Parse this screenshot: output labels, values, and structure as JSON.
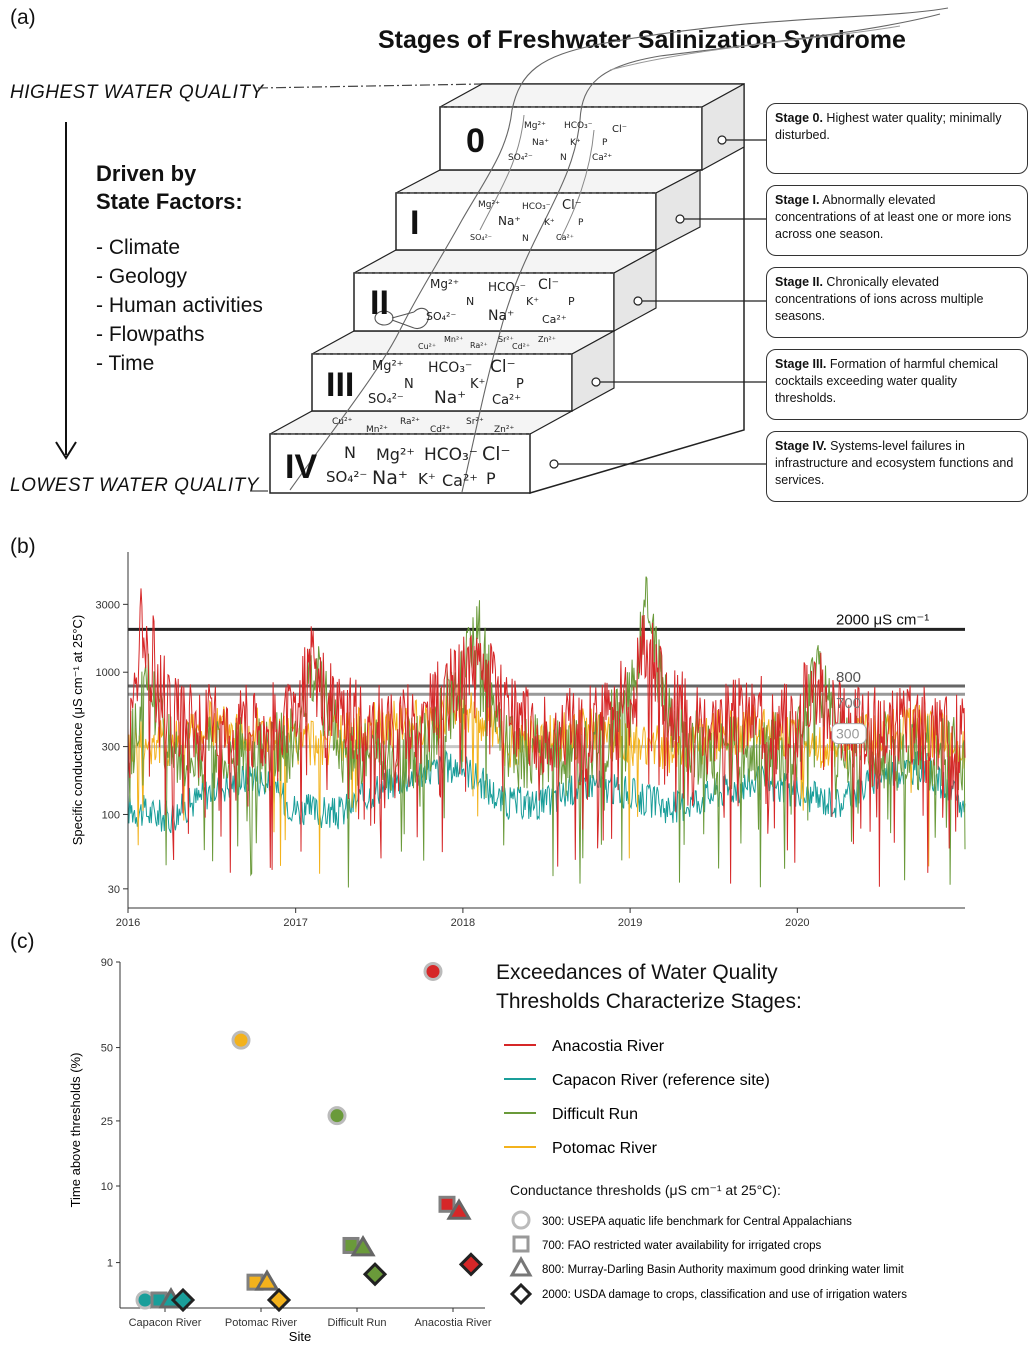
{
  "panel_a": {
    "letter": "(a)",
    "title": "Stages of Freshwater Salinization Syndrome",
    "highest": "HIGHEST WATER QUALITY",
    "lowest": "LOWEST WATER QUALITY",
    "driven_line1": "Driven by",
    "driven_line2": "State Factors:",
    "factors": [
      "- Climate",
      "- Geology",
      "- Human activities",
      "- Flowpaths",
      "- Time"
    ],
    "stages": [
      {
        "numeral": "0",
        "bold": "Stage 0.",
        "text": " Highest water quality; minimally disturbed."
      },
      {
        "numeral": "I",
        "bold": "Stage I.",
        "text": " Abnormally elevated concentrations of at least one or more ions across one season."
      },
      {
        "numeral": "II",
        "bold": "Stage II.",
        "text": " Chronically elevated concentrations of ions across multiple seasons."
      },
      {
        "numeral": "III",
        "bold": "Stage III.",
        "text": " Formation of harmful chemical cocktails exceeding water quality thresholds."
      },
      {
        "numeral": "IV",
        "bold": "Stage IV.",
        "text": " Systems-level failures in infrastructure and ecosystem functions and services."
      }
    ],
    "ions": {
      "mg": "Mg²⁺",
      "hco3": "HCO₃⁻",
      "cl": "Cl⁻",
      "na": "Na⁺",
      "k": "K⁺",
      "p": "P",
      "so4": "SO₄²⁻",
      "n": "N",
      "ca": "Ca²⁺",
      "cu": "Cu²⁺",
      "mn": "Mn²⁺",
      "ra": "Ra²⁺",
      "sr": "Sr²⁺",
      "cd": "Cd²⁺",
      "zn": "Zn²⁺"
    }
  },
  "panel_b": {
    "letter": "(b)",
    "ylabel": "Specific conductance (μS cm⁻¹ at 25°C)",
    "line_labels": [
      "2000 μS cm⁻¹",
      "800",
      "700",
      "300"
    ]
  },
  "panel_c": {
    "letter": "(c)",
    "ylabel": "Time above thresholds (%)",
    "xlabel": "Site",
    "legend_title_1": "Exceedances of Water Quality",
    "legend_title_2": "Thresholds Characterize Stages:",
    "threshold_title": "Conductance thresholds (μS cm⁻¹ at 25°C):",
    "thresholds": [
      "300: USEPA aquatic life benchmark for Central Appalachians",
      "700: FAO restricted water availability for irrigated crops",
      "800: Murray-Darling Basin Authority maximum good drinking water limit",
      "2000: USDA damage to crops, classification and use of irrigation waters"
    ]
  },
  "chart_data": [
    {
      "type": "line",
      "panel": "b",
      "xlabel": "",
      "ylabel": "Specific conductance (μS cm⁻¹ at 25°C)",
      "y_scale": "log",
      "ylim": [
        22,
        7000
      ],
      "xlim": [
        "2016-01-01",
        "2021-01-01"
      ],
      "x_ticks": [
        "2016",
        "2017",
        "2018",
        "2019",
        "2020"
      ],
      "y_ticks": [
        30,
        100,
        300,
        1000,
        3000
      ],
      "reference_lines": [
        {
          "value": 2000,
          "label": "2000 μS cm⁻¹",
          "color": "#222222"
        },
        {
          "value": 800,
          "label": "800",
          "color": "#666666"
        },
        {
          "value": 700,
          "label": "700",
          "color": "#999999"
        },
        {
          "value": 300,
          "label": "300",
          "color": "#c8c8c8"
        }
      ],
      "series": [
        {
          "name": "Capacon River (reference site)",
          "color": "#1a9e9a",
          "x": [
            "2016-01-01",
            "2016-04-01",
            "2016-07-01",
            "2016-10-01",
            "2017-01-01",
            "2017-04-01",
            "2017-07-01",
            "2017-10-01",
            "2018-01-01",
            "2018-04-01",
            "2018-07-01",
            "2018-10-01",
            "2019-01-01",
            "2019-04-01",
            "2019-07-01",
            "2019-10-01",
            "2020-01-01",
            "2020-04-01",
            "2020-07-01",
            "2020-10-01",
            "2021-01-01"
          ],
          "values": [
            110,
            95,
            150,
            190,
            110,
            100,
            155,
            200,
            220,
            120,
            120,
            170,
            140,
            110,
            140,
            170,
            140,
            120,
            190,
            220,
            110
          ]
        },
        {
          "name": "Potomac River",
          "color": "#f3b21c",
          "x": [
            "2016-01-01",
            "2016-04-01",
            "2016-07-01",
            "2016-10-01",
            "2017-01-01",
            "2017-04-01",
            "2017-07-01",
            "2017-10-01",
            "2018-01-01",
            "2018-04-01",
            "2018-07-01",
            "2018-10-01",
            "2019-01-01",
            "2019-04-01",
            "2019-07-01",
            "2019-10-01",
            "2020-01-01",
            "2020-04-01",
            "2020-07-01",
            "2020-10-01",
            "2021-01-01"
          ],
          "values": [
            300,
            330,
            420,
            400,
            320,
            340,
            430,
            420,
            600,
            320,
            330,
            380,
            330,
            290,
            360,
            420,
            340,
            300,
            380,
            400,
            300
          ]
        },
        {
          "name": "Difficult Run",
          "color": "#6a9a3a",
          "x": [
            "2016-01-01",
            "2016-02-15",
            "2016-04-01",
            "2016-07-01",
            "2016-10-01",
            "2017-01-01",
            "2017-02-15",
            "2017-04-01",
            "2017-07-01",
            "2017-10-01",
            "2018-01-01",
            "2018-02-01",
            "2018-04-01",
            "2018-07-01",
            "2018-10-01",
            "2019-01-01",
            "2019-02-01",
            "2019-04-01",
            "2019-07-01",
            "2019-10-01",
            "2020-01-01",
            "2020-02-15",
            "2020-04-01",
            "2020-07-01",
            "2020-10-01",
            "2021-01-01"
          ],
          "values": [
            250,
            900,
            300,
            280,
            260,
            300,
            1500,
            300,
            270,
            280,
            900,
            2000,
            300,
            260,
            250,
            600,
            3000,
            400,
            260,
            280,
            300,
            900,
            300,
            280,
            270,
            250
          ]
        },
        {
          "name": "Anacostia River",
          "color": "#d62728",
          "x": [
            "2016-01-01",
            "2016-02-01",
            "2016-04-01",
            "2016-07-01",
            "2016-10-01",
            "2017-01-01",
            "2017-02-01",
            "2017-04-01",
            "2017-07-01",
            "2017-10-01",
            "2018-01-01",
            "2018-02-01",
            "2018-04-01",
            "2018-07-01",
            "2018-10-01",
            "2019-01-01",
            "2019-02-01",
            "2019-04-01",
            "2019-07-01",
            "2019-10-01",
            "2020-01-01",
            "2020-02-01",
            "2020-04-01",
            "2020-07-01",
            "2020-10-01",
            "2021-01-01"
          ],
          "values": [
            350,
            2500,
            500,
            420,
            420,
            450,
            1200,
            480,
            420,
            440,
            1000,
            1500,
            520,
            380,
            420,
            700,
            1800,
            560,
            450,
            480,
            450,
            900,
            450,
            400,
            420,
            380
          ]
        }
      ]
    },
    {
      "type": "scatter",
      "panel": "c",
      "xlabel": "Site",
      "ylabel": "Time above thresholds (%)",
      "y_scale": "sqrt",
      "ylim": [
        0,
        90
      ],
      "y_ticks": [
        1,
        10,
        25,
        50,
        90
      ],
      "categories": [
        "Capacon River",
        "Potomac River",
        "Difficult Run",
        "Anacostia River"
      ],
      "series": [
        {
          "name": "300",
          "marker": "circle",
          "values": [
            0,
            53,
            26.5,
            85
          ]
        },
        {
          "name": "700",
          "marker": "square",
          "values": [
            0,
            0.2,
            2.2,
            7
          ]
        },
        {
          "name": "800",
          "marker": "triangle",
          "values": [
            0,
            0.2,
            2,
            6
          ]
        },
        {
          "name": "2000",
          "marker": "diamond",
          "values": [
            0,
            0,
            0.45,
            0.9
          ]
        }
      ],
      "site_colors": [
        "#1a9e9a",
        "#f3b21c",
        "#6a9a3a",
        "#d62728"
      ],
      "legend": [
        "Anacostia River",
        "Capacon River (reference site)",
        "Difficult Run",
        "Potomac River"
      ]
    }
  ]
}
